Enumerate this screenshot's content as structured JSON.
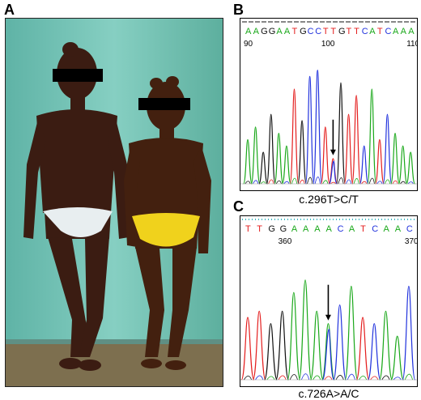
{
  "figure": {
    "panels": {
      "a": {
        "letter": "A"
      },
      "b": {
        "letter": "B",
        "sequence": [
          "A",
          "A",
          "G",
          "G",
          "A",
          "A",
          "T",
          "G",
          "C",
          "C",
          "T",
          "T",
          "G",
          "T",
          "T",
          "C",
          "A",
          "T",
          "C",
          "A",
          "A",
          "A"
        ],
        "positions": [
          {
            "label": "90",
            "index": 0
          },
          {
            "label": "100",
            "index": 10
          },
          {
            "label": "110",
            "index": 21
          }
        ],
        "arrow_index": 11,
        "peak_levels": [
          0.35,
          0.45,
          0.25,
          0.55,
          0.4,
          0.3,
          0.75,
          0.5,
          0.85,
          0.9,
          0.45,
          0.2,
          0.8,
          0.55,
          0.7,
          0.3,
          0.75,
          0.35,
          0.55,
          0.4,
          0.3,
          0.25
        ],
        "caption": "c.296T>C/T"
      },
      "c": {
        "letter": "C",
        "sequence": [
          "T",
          "T",
          "G",
          "G",
          "A",
          "A",
          "A",
          "A",
          "C",
          "A",
          "T",
          "C",
          "A",
          "A",
          "C"
        ],
        "positions": [
          {
            "label": "360",
            "index": 3
          },
          {
            "label": "370",
            "index": 14
          }
        ],
        "arrow_index": 7,
        "peak_levels": [
          0.5,
          0.55,
          0.45,
          0.55,
          0.7,
          0.8,
          0.55,
          0.45,
          0.6,
          0.75,
          0.5,
          0.45,
          0.55,
          0.35,
          0.75
        ],
        "caption": "c.726A>A/C"
      }
    },
    "base_colors": {
      "A": "#1aa81a",
      "T": "#e41e1e",
      "G": "#111111",
      "C": "#2233dd"
    },
    "photo_colors": {
      "wall": "#6fc0b4",
      "skin": "#3b1c12",
      "underwear_left": "#e8eef0",
      "underwear_right": "#f0d21c",
      "floor": "#8a7a55"
    }
  }
}
